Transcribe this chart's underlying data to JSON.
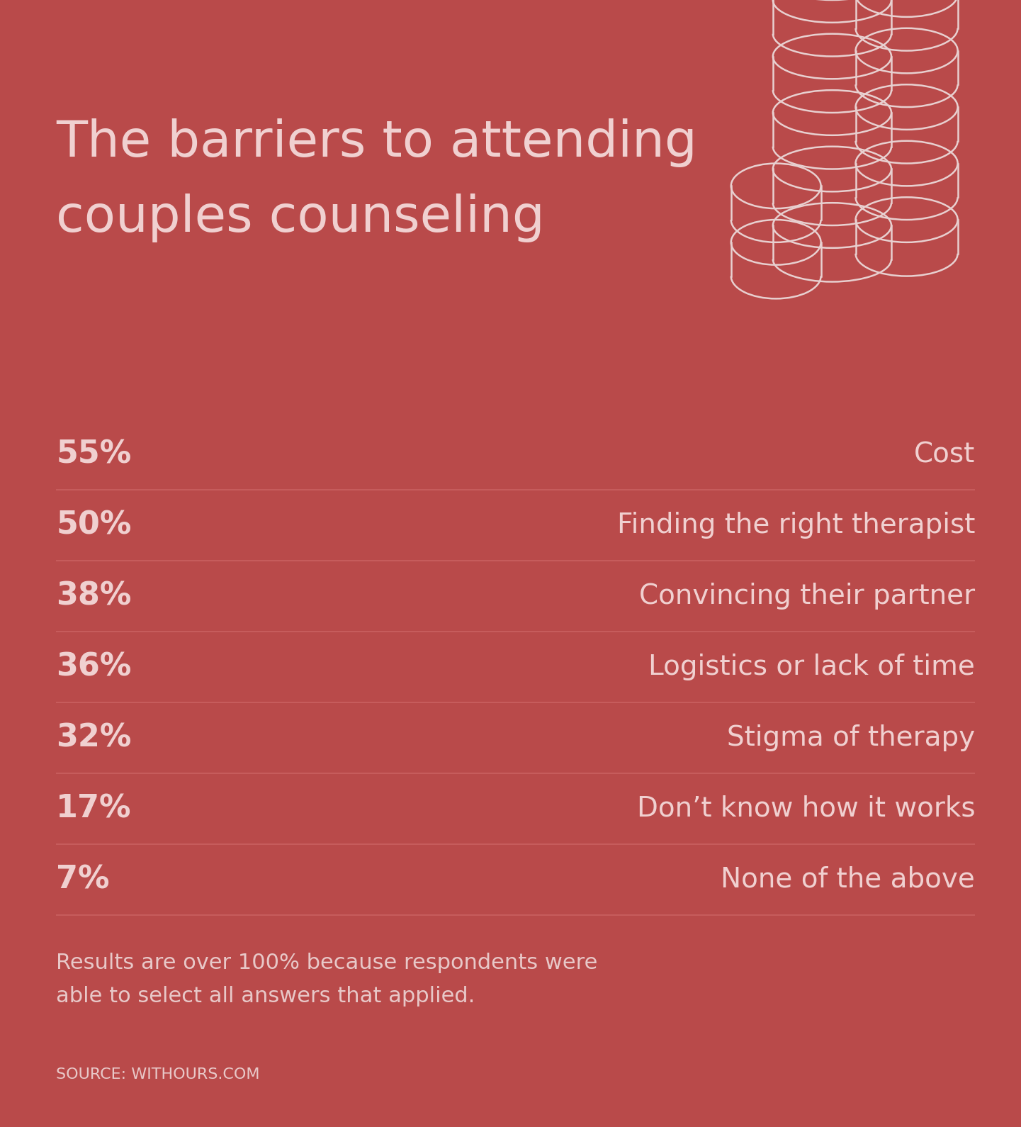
{
  "background_color": "#b94a4a",
  "title_line1": "The barriers to attending",
  "title_line2": "couples counseling",
  "title_color": "#f0d0d0",
  "title_fontsize": 52,
  "rows": [
    {
      "pct": "55%",
      "label": "Cost"
    },
    {
      "pct": "50%",
      "label": "Finding the right therapist"
    },
    {
      "pct": "38%",
      "label": "Convincing their partner"
    },
    {
      "pct": "36%",
      "label": "Logistics or lack of time"
    },
    {
      "pct": "32%",
      "label": "Stigma of therapy"
    },
    {
      "pct": "17%",
      "label": "Don’t know how it works"
    },
    {
      "pct": "7%",
      "label": "None of the above"
    }
  ],
  "pct_fontsize": 32,
  "label_fontsize": 28,
  "pct_color": "#f0d0d0",
  "label_color": "#f0d0d0",
  "line_color": "#c96060",
  "footnote_line1": "Results are over 100% because respondents were",
  "footnote_line2": "able to select all answers that applied.",
  "footnote_fontsize": 22,
  "source": "SOURCE: WITHOURS.COM",
  "source_fontsize": 16,
  "text_color_light": "#e8c8c8",
  "coin_color": "#e8d0d0"
}
